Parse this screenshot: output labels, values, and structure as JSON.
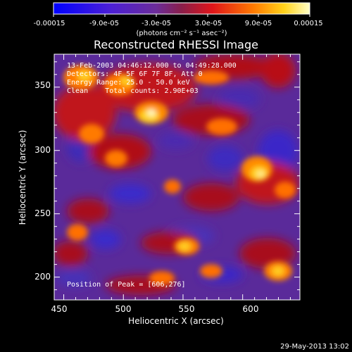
{
  "colorbar": {
    "tick_labels": [
      "-0.00015",
      "-9.0e-05",
      "-3.0e-05",
      "3.0e-05",
      "9.0e-05",
      "0.00015"
    ],
    "unit_label": "(photons cm⁻² s⁻¹ asec⁻²)",
    "range": [
      -0.00015,
      0.00015
    ]
  },
  "plot": {
    "title": "Reconstructed RHESSI Image",
    "xlabel": "Heliocentric X (arcsec)",
    "ylabel": "Heliocentric Y (arcsec)",
    "x_ticks": [
      "450",
      "500",
      "550",
      "600"
    ],
    "y_ticks": [
      "200",
      "250",
      "300",
      "350"
    ],
    "xlim": [
      442,
      648
    ],
    "ylim": [
      182,
      376
    ],
    "info_lines": [
      "13-Feb-2003 04:46:12.000 to 04:49:28.000",
      "Detectors: 4F 5F 6F 7F 8F, Att 0",
      "Energy Range: 25.0 - 50.0 keV",
      "Clean    Total counts: 2.90E+03"
    ],
    "peak_label": "Position of Peak = [606,276]",
    "peak_xy": [
      606,
      276
    ]
  },
  "footer": {
    "date": "29-May-2013 13:02"
  }
}
